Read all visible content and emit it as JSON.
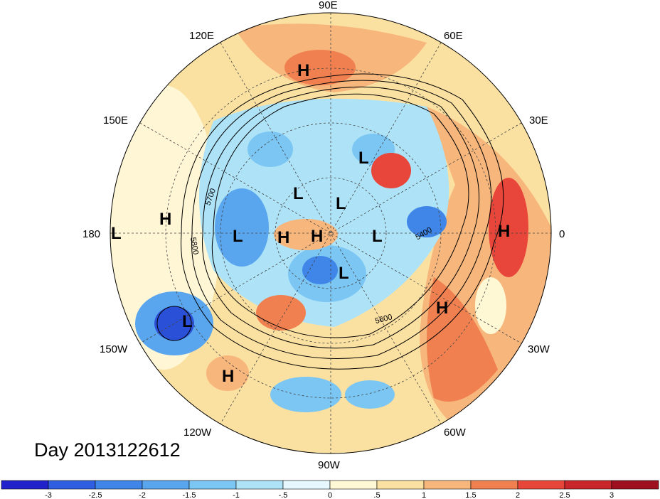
{
  "map": {
    "projection": "north-polar-stereographic",
    "longitude_labels": [
      "90E",
      "120E",
      "60E",
      "150E",
      "30E",
      "180",
      "0",
      "150W",
      "30W",
      "120W",
      "60W",
      "90W"
    ],
    "pressure_systems": [
      {
        "type": "H",
        "region": "central-siberia"
      },
      {
        "type": "L",
        "region": "barents-sea"
      },
      {
        "type": "L",
        "region": "east-siberian-sea"
      },
      {
        "type": "L",
        "region": "arctic-ocean"
      },
      {
        "type": "H",
        "region": "north-pacific"
      },
      {
        "type": "L",
        "region": "dateline"
      },
      {
        "type": "L",
        "region": "alaska-gulf"
      },
      {
        "type": "H",
        "region": "beaufort-sea"
      },
      {
        "type": "H",
        "region": "north-pole"
      },
      {
        "type": "L",
        "region": "greenland-west"
      },
      {
        "type": "L",
        "region": "canadian-archipelago"
      },
      {
        "type": "H",
        "region": "west-africa"
      },
      {
        "type": "H",
        "region": "central-atlantic"
      },
      {
        "type": "L",
        "region": "hawaii-northwest"
      },
      {
        "type": "H",
        "region": "eastern-pacific"
      }
    ],
    "contour_labels": [
      "5700",
      "5800",
      "5600",
      "5400"
    ],
    "colors": {
      "ocean_warm": "#f7c49a",
      "warm": "#f08b5c",
      "hot": "#e8463a",
      "neutral": "#fff6d6",
      "cool": "#bfe9f7",
      "cold": "#6aafea",
      "very_cold": "#2b50d8"
    }
  },
  "title": {
    "day_label": "Day 2013122612"
  },
  "colorbar": {
    "ticks": [
      "-3",
      "-2.5",
      "-2",
      "-1.5",
      "-1",
      "-.5",
      "0",
      ".5",
      "1",
      "1.5",
      "2",
      "2.5",
      "3"
    ],
    "colors": [
      "#2222cc",
      "#2f5fe0",
      "#3f86e8",
      "#5aa6ee",
      "#7cc6f4",
      "#aee3f7",
      "#e6f8fd",
      "#fff8d5",
      "#fbe1a1",
      "#f7b67c",
      "#f08050",
      "#e8463a",
      "#c8262a",
      "#9e0f1f"
    ]
  }
}
